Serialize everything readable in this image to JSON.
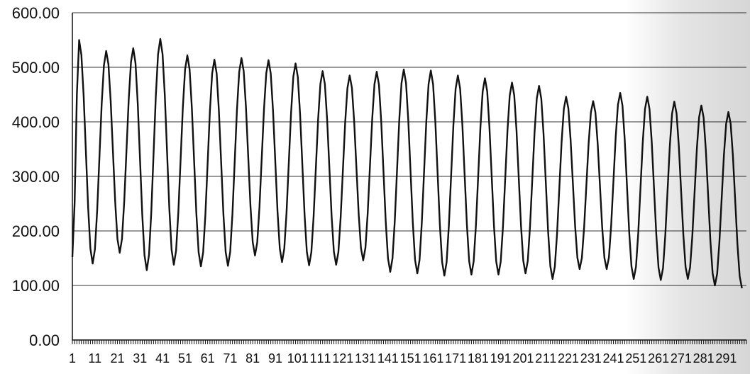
{
  "chart_data": {
    "type": "line",
    "title": "",
    "xlabel": "",
    "ylabel": "",
    "ylim": [
      0,
      600
    ],
    "y_ticks": [
      "0.00",
      "100.00",
      "200.00",
      "300.00",
      "400.00",
      "500.00",
      "600.00"
    ],
    "x_tick_labels": [
      "1",
      "11",
      "21",
      "31",
      "41",
      "51",
      "61",
      "71",
      "81",
      "91",
      "101",
      "111",
      "121",
      "131",
      "141",
      "151",
      "161",
      "171",
      "181",
      "191",
      "201",
      "211",
      "221",
      "231",
      "241",
      "251",
      "261",
      "271",
      "281",
      "291"
    ],
    "x_count": 300,
    "grid": "horizontal",
    "legend": "none",
    "colors": {
      "line": "#111111",
      "grid": "#333333",
      "background": "#ffffff"
    },
    "series": [
      {
        "cycles": [
          {
            "peak": 550,
            "trough": 140
          },
          {
            "peak": 530,
            "trough": 160
          },
          {
            "peak": 535,
            "trough": 128
          },
          {
            "peak": 552,
            "trough": 138
          },
          {
            "peak": 522,
            "trough": 135
          },
          {
            "peak": 514,
            "trough": 136
          },
          {
            "peak": 517,
            "trough": 155
          },
          {
            "peak": 513,
            "trough": 143
          },
          {
            "peak": 507,
            "trough": 137
          },
          {
            "peak": 493,
            "trough": 138
          },
          {
            "peak": 485,
            "trough": 146
          },
          {
            "peak": 492,
            "trough": 125
          },
          {
            "peak": 496,
            "trough": 122
          },
          {
            "peak": 494,
            "trough": 118
          },
          {
            "peak": 485,
            "trough": 120
          },
          {
            "peak": 480,
            "trough": 120
          },
          {
            "peak": 472,
            "trough": 122
          },
          {
            "peak": 466,
            "trough": 112
          },
          {
            "peak": 446,
            "trough": 130
          },
          {
            "peak": 438,
            "trough": 130
          },
          {
            "peak": 453,
            "trough": 112
          },
          {
            "peak": 446,
            "trough": 110
          },
          {
            "peak": 437,
            "trough": 112
          },
          {
            "peak": 430,
            "trough": 100
          },
          {
            "peak": 418,
            "trough": 95
          }
        ],
        "start_value": 152,
        "period": 12,
        "start_x": 1
      }
    ]
  }
}
